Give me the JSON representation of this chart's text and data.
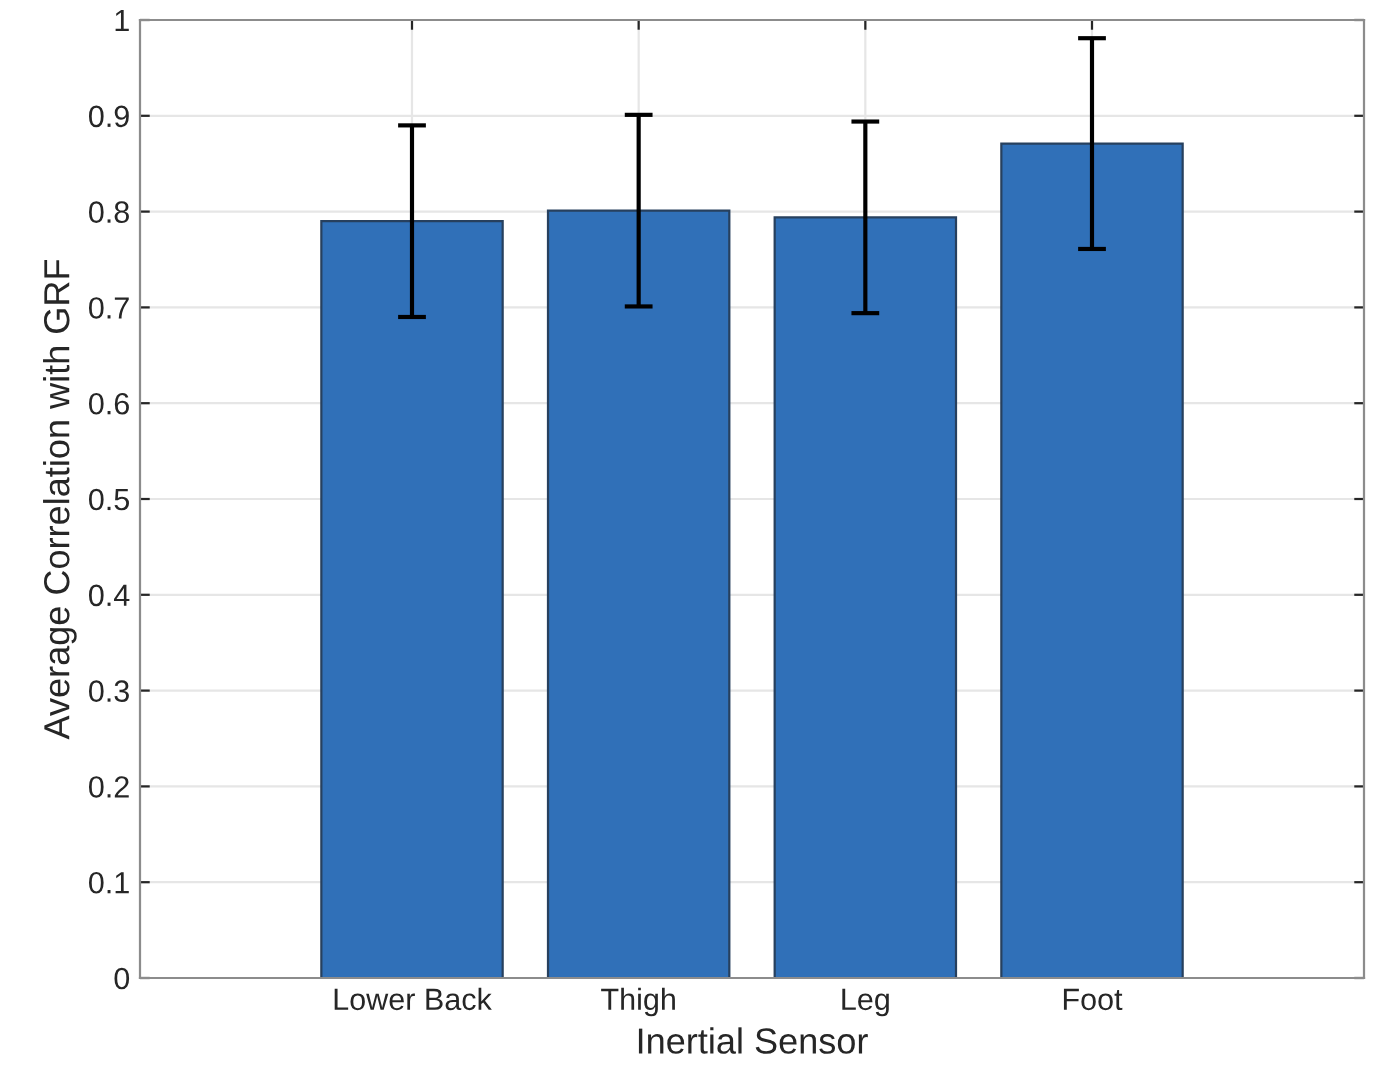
{
  "chart_data": {
    "type": "bar",
    "xlabel": "Inertial Sensor",
    "ylabel": "Average Correlation with GRF",
    "categories": [
      "Lower Back",
      "Thigh",
      "Leg",
      "Foot"
    ],
    "values": [
      0.79,
      0.801,
      0.794,
      0.871
    ],
    "errors": [
      0.1,
      0.1,
      0.1,
      0.11
    ],
    "color": "#3070b8",
    "ylim": [
      0,
      1
    ],
    "yticks": [
      0,
      0.1,
      0.2,
      0.3,
      0.4,
      0.5,
      0.6,
      0.7,
      0.8,
      0.9,
      1
    ],
    "grid": true
  }
}
